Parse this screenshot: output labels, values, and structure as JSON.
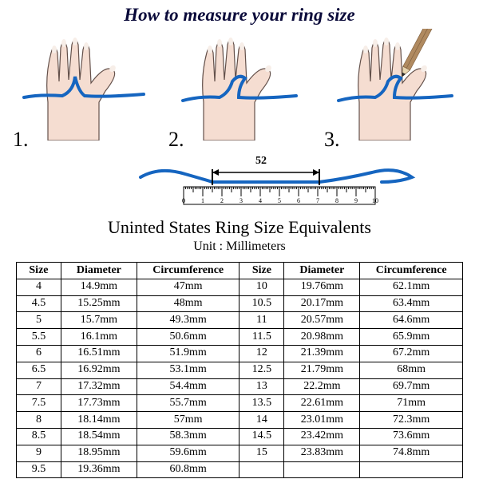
{
  "title": "How to measure your ring size",
  "steps": {
    "s1": "1.",
    "s2": "2.",
    "s3": "3."
  },
  "ruler": {
    "measure_label": "52",
    "tick_labels": [
      "0",
      "1",
      "2",
      "3",
      "4",
      "5",
      "6",
      "7",
      "8",
      "9",
      "10"
    ]
  },
  "table": {
    "heading": "Uninted States Ring Size Equivalents",
    "unit_line": "Unit : Millimeters",
    "columns": [
      "Size",
      "Diameter",
      "Circumference",
      "Size",
      "Diameter",
      "Circumference"
    ],
    "col_widths_pct": [
      10,
      17,
      23,
      10,
      17,
      23
    ],
    "rows": [
      [
        "4",
        "14.9mm",
        "47mm",
        "10",
        "19.76mm",
        "62.1mm"
      ],
      [
        "4.5",
        "15.25mm",
        "48mm",
        "10.5",
        "20.17mm",
        "63.4mm"
      ],
      [
        "5",
        "15.7mm",
        "49.3mm",
        "11",
        "20.57mm",
        "64.6mm"
      ],
      [
        "5.5",
        "16.1mm",
        "50.6mm",
        "11.5",
        "20.98mm",
        "65.9mm"
      ],
      [
        "6",
        "16.51mm",
        "51.9mm",
        "12",
        "21.39mm",
        "67.2mm"
      ],
      [
        "6.5",
        "16.92mm",
        "53.1mm",
        "12.5",
        "21.79mm",
        "68mm"
      ],
      [
        "7",
        "17.32mm",
        "54.4mm",
        "13",
        "22.2mm",
        "69.7mm"
      ],
      [
        "7.5",
        "17.73mm",
        "55.7mm",
        "13.5",
        "22.61mm",
        "71mm"
      ],
      [
        "8",
        "18.14mm",
        "57mm",
        "14",
        "23.01mm",
        "72.3mm"
      ],
      [
        "8.5",
        "18.54mm",
        "58.3mm",
        "14.5",
        "23.42mm",
        "73.6mm"
      ],
      [
        "9",
        "18.95mm",
        "59.6mm",
        "15",
        "23.83mm",
        "74.8mm"
      ],
      [
        "9.5",
        "19.36mm",
        "60.8mm",
        "",
        "",
        ""
      ]
    ]
  },
  "colors": {
    "skin": "#f5ddd1",
    "nail": "#f7eee8",
    "outline": "#63504a",
    "string": "#1565c0",
    "title": "#0a0a3a",
    "pencil_body": "#b08a60",
    "pencil_dark": "#7a5a3a",
    "pencil_tip": "#2b2b2b",
    "ruler_stroke": "#000",
    "ruler_fill": "#ffffff"
  },
  "style": {
    "title_fontsize": 23,
    "step_fontsize": 26,
    "table_heading_fontsize": 22,
    "unit_fontsize": 16,
    "table_fontsize": 14
  }
}
